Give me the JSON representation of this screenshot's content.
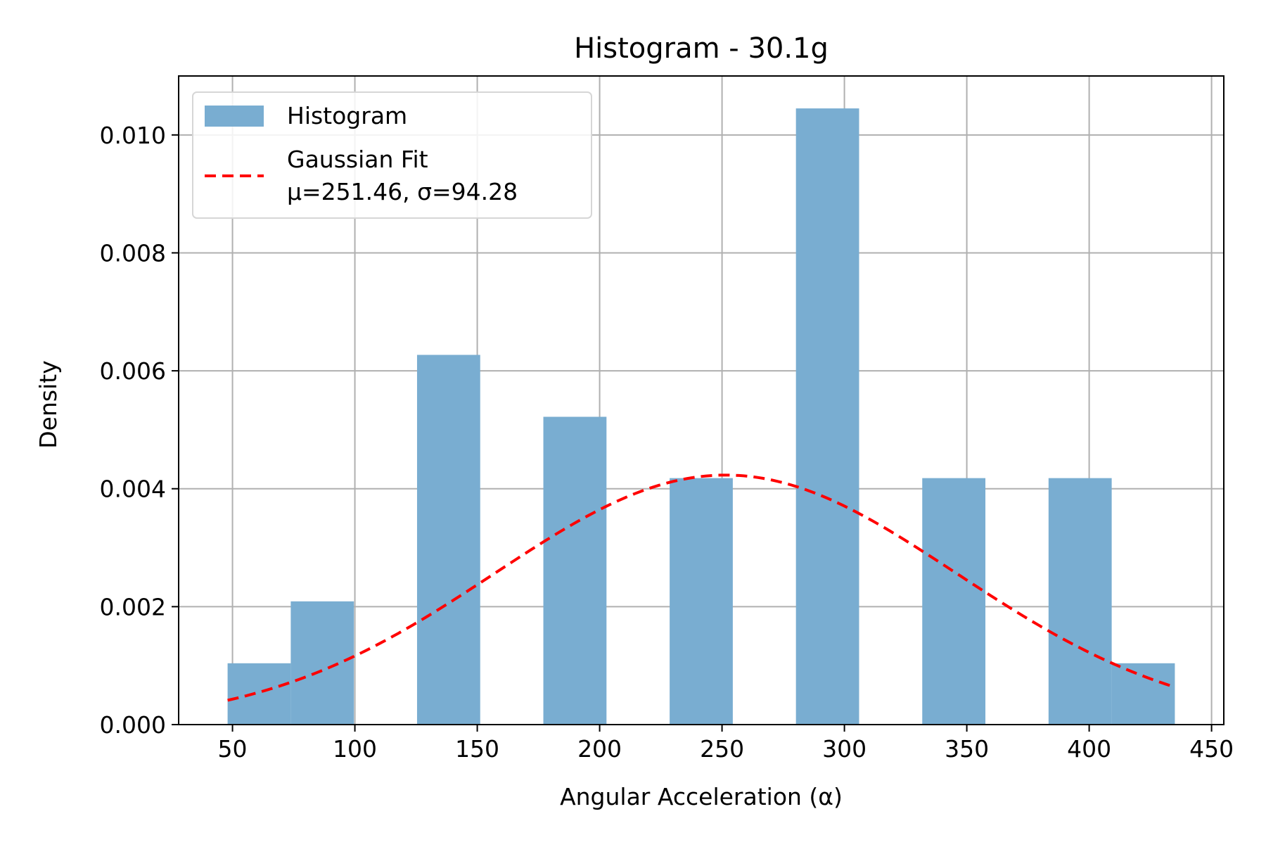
{
  "chart_data": {
    "type": "bar",
    "title": "Histogram - 30.1g",
    "xlabel": "Angular Acceleration (α)",
    "ylabel": "Density",
    "xlim": [
      28,
      455
    ],
    "ylim": [
      0,
      0.011
    ],
    "xticks": [
      50,
      100,
      150,
      200,
      250,
      300,
      350,
      400,
      450
    ],
    "yticks": [
      0.0,
      0.002,
      0.004,
      0.006,
      0.008,
      0.01
    ],
    "xtick_labels": [
      "50",
      "100",
      "150",
      "200",
      "250",
      "300",
      "350",
      "400",
      "450"
    ],
    "ytick_labels": [
      "0.000",
      "0.002",
      "0.004",
      "0.006",
      "0.008",
      "0.010"
    ],
    "grid": true,
    "legend_position": "top-left",
    "bin_edges": [
      48.0,
      73.8,
      99.6,
      125.4,
      151.2,
      177.0,
      202.8,
      228.6,
      254.4,
      280.2,
      306.0,
      331.8,
      357.6,
      383.4,
      409.2,
      435.0
    ],
    "series": [
      {
        "name": "Histogram",
        "kind": "histogram",
        "color": "#79add1",
        "values": [
          0.00104,
          0.00209,
          0.0,
          0.00627,
          0.0,
          0.00522,
          0.0,
          0.00418,
          0.0,
          0.01045,
          0.0,
          0.00418,
          0.0,
          0.00418,
          0.00104
        ]
      },
      {
        "name": "Gaussian Fit\nμ=251.46, σ=94.28",
        "kind": "line",
        "style": "dashed",
        "color": "#ff0000",
        "mu": 251.46,
        "sigma": 94.28,
        "x_range": [
          48.0,
          435.0
        ]
      }
    ],
    "legend": {
      "entries": [
        {
          "label": "Histogram"
        },
        {
          "label_lines": [
            "Gaussian Fit",
            "μ=251.46, σ=94.28"
          ]
        }
      ]
    }
  }
}
